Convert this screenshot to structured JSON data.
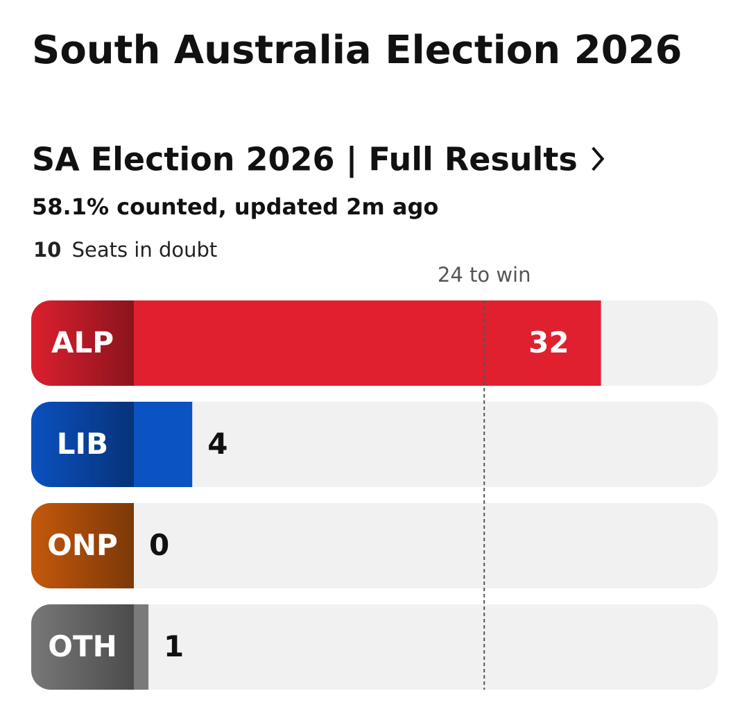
{
  "chart_data": {
    "type": "hbar",
    "title": "South Australia Election 2026",
    "subtitle": "SA Election 2026 | Full Results",
    "status": "58.1% counted, updated 2m ago",
    "seats_in_doubt": {
      "value": 10,
      "label": "Seats in doubt"
    },
    "threshold": {
      "value": 24,
      "label": "24 to win"
    },
    "categories": [
      "ALP",
      "LIB",
      "ONP",
      "OTH"
    ],
    "values": [
      32,
      4,
      0,
      1
    ],
    "colors": [
      "#e0202f",
      "#0b52c3",
      "#c85a0c",
      "#7a7a7a"
    ],
    "xlim": [
      0,
      40
    ]
  }
}
